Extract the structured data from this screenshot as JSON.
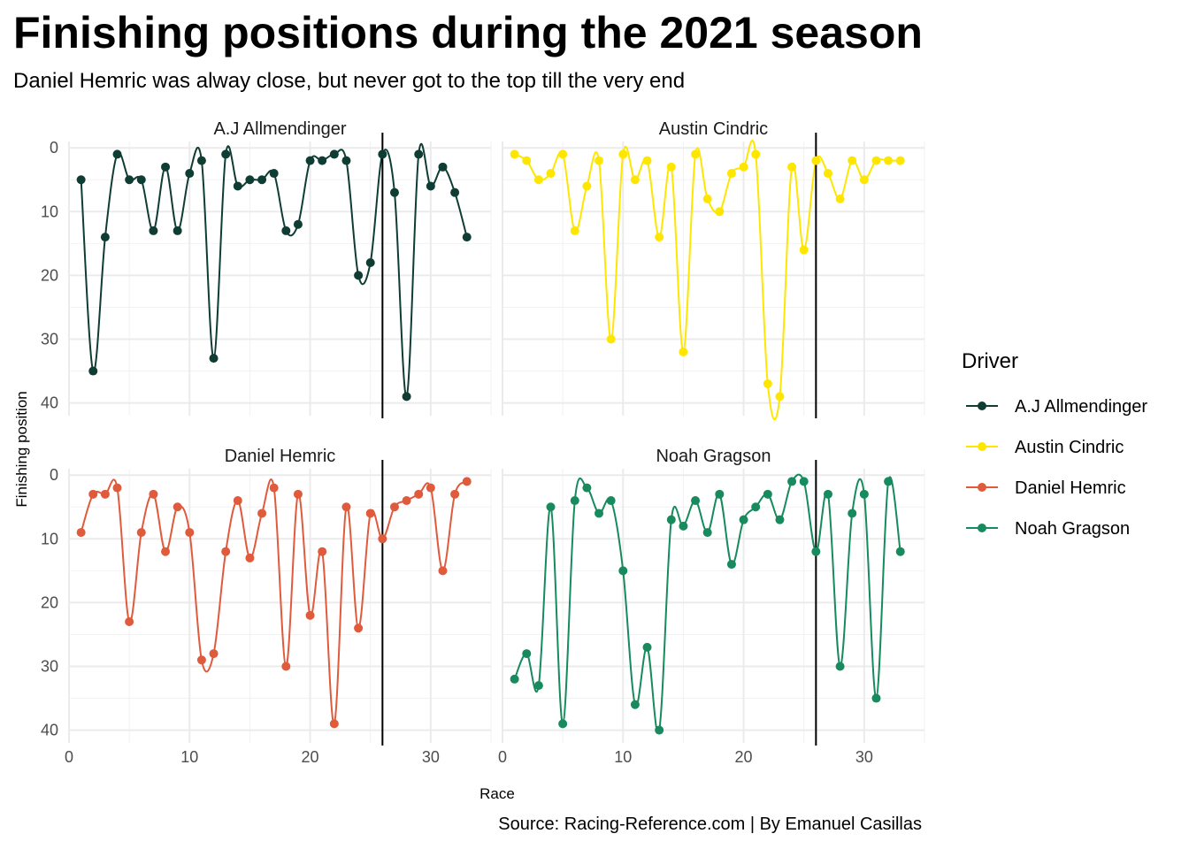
{
  "title": "Finishing positions during the 2021 season",
  "subtitle": "Daniel Hemric was alway close, but never got to the top till the very end",
  "caption": "Source: Racing-Reference.com | By Emanuel Casillas",
  "chart_data": {
    "type": "line",
    "facets": [
      "A.J Allmendinger",
      "Austin Cindric",
      "Daniel Hemric",
      "Noah Gragson"
    ],
    "xlabel": "Race",
    "ylabel": "Finishing position",
    "xlim": [
      0,
      35
    ],
    "ylim": [
      42,
      -1
    ],
    "y_reversed": true,
    "x_ticks": [
      0,
      10,
      20,
      30
    ],
    "y_ticks": [
      0,
      10,
      20,
      30,
      40
    ],
    "vline_x": 26,
    "grid": true,
    "legend": {
      "title": "Driver",
      "position": "right"
    },
    "series": [
      {
        "name": "A.J Allmendinger",
        "color": "#0f3d34",
        "x": [
          1,
          2,
          3,
          4,
          5,
          6,
          7,
          8,
          9,
          10,
          11,
          12,
          13,
          14,
          15,
          16,
          17,
          18,
          19,
          20,
          21,
          22,
          23,
          24,
          25,
          26,
          27,
          28,
          29,
          30,
          31,
          32,
          33
        ],
        "y": [
          5,
          35,
          14,
          1,
          5,
          5,
          13,
          3,
          13,
          4,
          2,
          33,
          1,
          6,
          5,
          5,
          4,
          13,
          12,
          2,
          2,
          1,
          2,
          20,
          18,
          1,
          7,
          39,
          1,
          6,
          3,
          7,
          14
        ]
      },
      {
        "name": "Austin Cindric",
        "color": "#ffe600",
        "x": [
          1,
          2,
          3,
          4,
          5,
          6,
          7,
          8,
          9,
          10,
          11,
          12,
          13,
          14,
          15,
          16,
          17,
          18,
          19,
          20,
          21,
          22,
          23,
          24,
          25,
          26,
          27,
          28,
          29,
          30,
          31,
          32,
          33
        ],
        "y": [
          1,
          2,
          5,
          4,
          1,
          13,
          6,
          2,
          30,
          1,
          5,
          2,
          14,
          3,
          32,
          1,
          8,
          10,
          4,
          3,
          1,
          37,
          39,
          3,
          16,
          2,
          4,
          8,
          2,
          5,
          2,
          2,
          2
        ]
      },
      {
        "name": "Daniel Hemric",
        "color": "#e05a3c",
        "x": [
          1,
          2,
          3,
          4,
          5,
          6,
          7,
          8,
          9,
          10,
          11,
          12,
          13,
          14,
          15,
          16,
          17,
          18,
          19,
          20,
          21,
          22,
          23,
          24,
          25,
          26,
          27,
          28,
          29,
          30,
          31,
          32,
          33
        ],
        "y": [
          9,
          3,
          3,
          2,
          23,
          9,
          3,
          12,
          5,
          9,
          29,
          28,
          12,
          4,
          13,
          6,
          2,
          30,
          3,
          22,
          12,
          39,
          5,
          24,
          6,
          10,
          5,
          4,
          3,
          2,
          15,
          3,
          1
        ]
      },
      {
        "name": "Noah Gragson",
        "color": "#178a5e",
        "x": [
          1,
          2,
          3,
          4,
          5,
          6,
          7,
          8,
          9,
          10,
          11,
          12,
          13,
          14,
          15,
          16,
          17,
          18,
          19,
          20,
          21,
          22,
          23,
          24,
          25,
          26,
          27,
          28,
          29,
          30,
          31,
          32,
          33
        ],
        "y": [
          32,
          28,
          33,
          5,
          39,
          4,
          2,
          6,
          4,
          15,
          36,
          27,
          40,
          7,
          8,
          4,
          9,
          3,
          14,
          7,
          5,
          3,
          7,
          1,
          1,
          12,
          3,
          30,
          6,
          3,
          35,
          1,
          12
        ]
      }
    ]
  }
}
